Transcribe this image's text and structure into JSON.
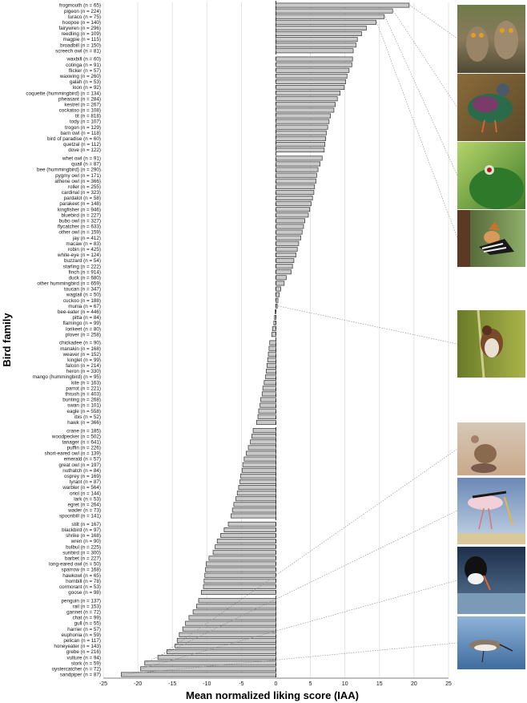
{
  "chart_data": {
    "type": "bar",
    "orientation": "horizontal",
    "xlabel": "Mean normalized liking score (IAA)",
    "ylabel": "Bird family",
    "xlim": [
      -25,
      25
    ],
    "xticks": [
      -25,
      -20,
      -15,
      -10,
      -5,
      0,
      5,
      10,
      15,
      20,
      25
    ],
    "grid": true,
    "categories": [
      "frogmouth (n = 65)",
      "pigeon (n = 224)",
      "turaco (n = 75)",
      "hoopoe (n = 140)",
      "fairywren (n = 296)",
      "reedling (n = 109)",
      "magpie (n = 115)",
      "broadbill (n = 150)",
      "screech owl (n = 81)",
      "waxbill (n = 60)",
      "cotinga (n = 91)",
      "flicker (n = 57)",
      "waxwing (n = 260)",
      "galah (n = 53)",
      "loon (n = 92)",
      "coquette (hummingbird) (n = 134)",
      "pheasant (n = 284)",
      "kestrel (n = 267)",
      "cockatoo (n = 108)",
      "tit (n = 818)",
      "tody (n = 107)",
      "trogon (n = 129)",
      "barn owl (n = 118)",
      "bird of paradise (n = 60)",
      "quetzal (n = 112)",
      "dove (n = 122)",
      "whet owl (n = 91)",
      "quail (n = 87)",
      "bee (hummingbird) (n = 290)",
      "pygmy owl (n = 171)",
      "athene owl (n = 366)",
      "roller (n = 255)",
      "cardinal (n = 323)",
      "pardalot (n = 58)",
      "parakeet (n = 148)",
      "kingfisher (n = 946)",
      "bluebird (n = 227)",
      "bubo owl (n = 327)",
      "flycatcher (n = 633)",
      "other owl (n = 159)",
      "jay (n = 412)",
      "macaw (n = 83)",
      "robin (n = 425)",
      "white-eye (n = 124)",
      "buzzard (n = 54)",
      "starling (n = 222)",
      "finch (n = 914)",
      "duck (n = 680)",
      "other hummingbird (n = 659)",
      "toucan (n = 347)",
      "wagtail (n = 50)",
      "cuckoo (n = 188)",
      "munia (n = 67)",
      "bee-eater (n = 446)",
      "pitta (n = 84)",
      "flamingo (n = 99)",
      "lorikeet (n = 80)",
      "plover (n = 258)",
      "chickadee (n = 90)",
      "manakin (n = 168)",
      "weaver (n = 152)",
      "kinglet (n = 99)",
      "falcon (n = 214)",
      "heron (n = 330)",
      "mango (hummingbird) (n = 95)",
      "kite (n = 163)",
      "parrot (n = 221)",
      "thrush (n = 403)",
      "bunting (n = 268)",
      "swan (n = 101)",
      "eagle (n = 558)",
      "ibis (n = 52)",
      "hawk (n = 366)",
      "crane (n = 185)",
      "woodpecker (n = 502)",
      "tanager (n = 641)",
      "puffin (n = 226)",
      "short-eared owl (n = 139)",
      "emerald (n = 57)",
      "great owl (n = 197)",
      "nuthatch (n = 84)",
      "osprey (n = 169)",
      "tyrant (n = 87)",
      "warbler (n = 564)",
      "oriol (n = 144)",
      "lark (n = 53)",
      "egret (n = 264)",
      "wader (n = 73)",
      "spoonbill (n = 141)",
      "stilt (n = 167)",
      "blackbird (n = 97)",
      "shrike (n = 168)",
      "wren (n = 90)",
      "bulbul (n = 225)",
      "sunbird (n = 300)",
      "barbet (n = 227)",
      "long-eared owl (n = 50)",
      "sparrow (n = 168)",
      "hawkowl (n = 65)",
      "hornbill (n = 78)",
      "cormorant (n = 53)",
      "goose (n = 98)",
      "penguin (n = 137)",
      "rail (n = 153)",
      "gannet (n = 72)",
      "chat (n = 99)",
      "gull (n = 55)",
      "harrier (n = 57)",
      "euphonia (n = 59)",
      "pelican (n = 117)",
      "honeyeater (n = 143)",
      "grebe (n = 216)",
      "vulture (n = 94)",
      "stork (n = 59)",
      "oystercatcher (n = 72)",
      "sandpiper (n = 87)"
    ],
    "values": [
      19.3,
      16.9,
      15.7,
      14.5,
      13.1,
      12.4,
      11.8,
      11.6,
      11.2,
      11.1,
      11.0,
      10.6,
      10.3,
      10.1,
      9.9,
      9.3,
      8.9,
      8.6,
      8.4,
      7.9,
      7.7,
      7.5,
      7.3,
      7.2,
      7.1,
      7.0,
      6.7,
      6.4,
      6.1,
      5.9,
      5.8,
      5.6,
      5.5,
      5.3,
      5.1,
      4.9,
      4.7,
      4.2,
      4.0,
      3.8,
      3.6,
      3.3,
      3.1,
      2.9,
      2.6,
      2.4,
      2.2,
      1.5,
      1.2,
      0.7,
      0.5,
      0.3,
      0.2,
      -0.1,
      -0.2,
      -0.3,
      -0.5,
      -0.6,
      -0.9,
      -1.0,
      -1.1,
      -1.2,
      -1.3,
      -1.4,
      -1.5,
      -1.7,
      -1.9,
      -2.0,
      -2.2,
      -2.3,
      -2.5,
      -2.6,
      -2.8,
      -3.3,
      -3.5,
      -3.7,
      -4.0,
      -4.3,
      -4.6,
      -4.8,
      -4.9,
      -5.1,
      -5.2,
      -5.4,
      -5.6,
      -5.8,
      -6.1,
      -6.3,
      -6.5,
      -6.9,
      -7.5,
      -8.0,
      -8.5,
      -8.8,
      -9.1,
      -9.7,
      -10.1,
      -10.2,
      -10.3,
      -10.4,
      -10.5,
      -10.8,
      -11.2,
      -11.5,
      -12.0,
      -12.6,
      -13.1,
      -13.5,
      -14.0,
      -14.3,
      -14.6,
      -15.8,
      -17.1,
      -19.0,
      -19.6,
      -22.4
    ],
    "group_break_after": [
      8,
      25,
      57,
      72,
      88,
      101
    ],
    "images": [
      {
        "label": "frogmouth",
        "linked_category": 0
      },
      {
        "label": "pigeon",
        "linked_category": 1
      },
      {
        "label": "turaco",
        "linked_category": 2
      },
      {
        "label": "hoopoe",
        "linked_category": 3
      },
      {
        "label": "munia",
        "linked_category": 52
      },
      {
        "label": "vulture",
        "linked_category": 112
      },
      {
        "label": "stork",
        "linked_category": 113
      },
      {
        "label": "oystercatcher",
        "linked_category": 114
      },
      {
        "label": "sandpiper",
        "linked_category": 115
      }
    ],
    "colors": {
      "bar_fill": "#c9c9c9",
      "bar_stroke": "#2e2e2e",
      "grid": "#dcdcdc"
    }
  }
}
